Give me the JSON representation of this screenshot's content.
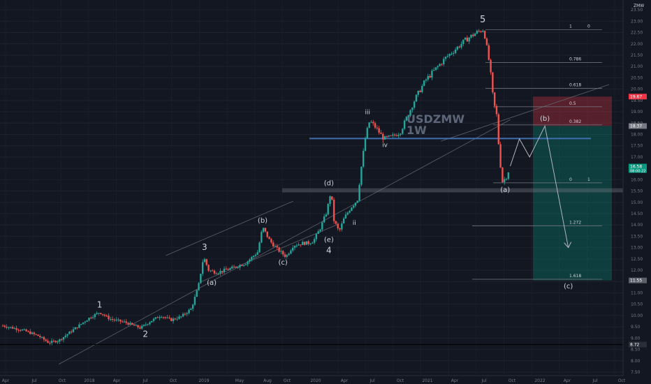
{
  "chart_data": {
    "type": "candlestick",
    "symbol_watermark": "USDZMW",
    "timeframe_watermark": "1W",
    "currency_label": "ZMW",
    "y_ticks": [
      "23.50",
      "23.00",
      "22.50",
      "22.00",
      "21.50",
      "21.00",
      "20.50",
      "20.00",
      "19.50",
      "19.00",
      "18.50",
      "18.00",
      "17.50",
      "17.00",
      "16.50",
      "16.00",
      "15.50",
      "15.00",
      "14.50",
      "14.00",
      "13.50",
      "13.00",
      "12.50",
      "12.00",
      "11.50",
      "11.00",
      "10.50",
      "10.00",
      "9.50",
      "9.00",
      "8.50",
      "8.00",
      "7.50"
    ],
    "ylim": [
      7.5,
      23.75
    ],
    "x_ticks": [
      "Apr",
      "Jul",
      "Oct",
      "2018",
      "Apr",
      "Jul",
      "Oct",
      "2019",
      "May",
      "Aug",
      "Oct",
      "2020",
      "Apr",
      "Jul",
      "Oct",
      "2021",
      "Apr",
      "Jul",
      "Oct",
      "2022",
      "Apr",
      "Jul",
      "Oct"
    ],
    "price_path": [
      [
        2017.0,
        9.55
      ],
      [
        2017.2,
        9.35
      ],
      [
        2017.35,
        9.1
      ],
      [
        2017.45,
        8.8
      ],
      [
        2017.55,
        8.9
      ],
      [
        2017.7,
        9.4
      ],
      [
        2017.85,
        9.9
      ],
      [
        2017.95,
        10.15
      ],
      [
        2018.05,
        9.85
      ],
      [
        2018.2,
        9.7
      ],
      [
        2018.35,
        9.45
      ],
      [
        2018.45,
        9.75
      ],
      [
        2018.55,
        10.0
      ],
      [
        2018.65,
        9.8
      ],
      [
        2018.75,
        9.95
      ],
      [
        2018.85,
        10.3
      ],
      [
        2018.92,
        11.3
      ],
      [
        2018.97,
        12.6
      ],
      [
        2019.02,
        12.0
      ],
      [
        2019.1,
        11.9
      ],
      [
        2019.25,
        12.1
      ],
      [
        2019.38,
        12.3
      ],
      [
        2019.5,
        12.8
      ],
      [
        2019.55,
        13.9
      ],
      [
        2019.62,
        13.3
      ],
      [
        2019.7,
        12.9
      ],
      [
        2019.78,
        12.6
      ],
      [
        2019.85,
        13.1
      ],
      [
        2019.95,
        13.2
      ],
      [
        2020.0,
        13.2
      ],
      [
        2020.05,
        13.3
      ],
      [
        2020.12,
        13.9
      ],
      [
        2020.18,
        14.6
      ],
      [
        2020.22,
        15.5
      ],
      [
        2020.25,
        14.2
      ],
      [
        2020.3,
        13.7
      ],
      [
        2020.35,
        14.3
      ],
      [
        2020.42,
        14.8
      ],
      [
        2020.48,
        15.1
      ],
      [
        2020.52,
        16.6
      ],
      [
        2020.56,
        17.9
      ],
      [
        2020.6,
        18.6
      ],
      [
        2020.66,
        18.3
      ],
      [
        2020.74,
        17.8
      ],
      [
        2020.82,
        17.9
      ],
      [
        2020.9,
        18.1
      ],
      [
        2020.97,
        18.8
      ],
      [
        2021.05,
        19.6
      ],
      [
        2021.15,
        20.4
      ],
      [
        2021.25,
        20.9
      ],
      [
        2021.35,
        21.4
      ],
      [
        2021.45,
        21.8
      ],
      [
        2021.55,
        22.2
      ],
      [
        2021.65,
        22.5
      ],
      [
        2021.72,
        22.65
      ],
      [
        2021.78,
        21.0
      ],
      [
        2021.82,
        19.2
      ],
      [
        2021.84,
        19.25
      ],
      [
        2021.87,
        17.3
      ],
      [
        2021.9,
        15.9
      ],
      [
        2021.94,
        16.1
      ],
      [
        2021.98,
        16.6
      ]
    ],
    "support_level": 8.72,
    "resistance_level_blue": 17.82,
    "zone_gray": [
      15.43,
      15.56
    ],
    "fib_levels": [
      {
        "label": "1",
        "price": 22.63,
        "right": "0"
      },
      {
        "label": "0.786",
        "price": 21.18,
        "right": ""
      },
      {
        "label": "0.618",
        "price": 20.03,
        "right": ""
      },
      {
        "label": "0.5",
        "price": 19.22,
        "right": ""
      },
      {
        "label": "0.382",
        "price": 18.42,
        "right": ""
      },
      {
        "label": "0",
        "price": 15.86,
        "right": "1"
      },
      {
        "label": "1.272",
        "price": 13.96,
        "right": ""
      },
      {
        "label": "1.618",
        "price": 11.6,
        "right": ""
      }
    ],
    "short_position": {
      "entry": 18.37,
      "stop": 19.67,
      "target": 11.55
    },
    "projection_path": [
      [
        2021.98,
        16.6
      ],
      [
        2022.07,
        17.8
      ],
      [
        2022.17,
        17.0
      ],
      [
        2022.32,
        18.37
      ],
      [
        2022.55,
        13.0
      ]
    ],
    "price_labels": [
      {
        "text": "19.67",
        "price": 19.67,
        "color": "#f23645"
      },
      {
        "text": "18.37",
        "price": 18.37,
        "color": "#787b86"
      },
      {
        "text": "16.58",
        "sub": "08:00:22",
        "price": 16.58,
        "color": "#089981"
      },
      {
        "text": "11.55",
        "price": 11.55,
        "color": "#5d606b"
      },
      {
        "text": "8.72",
        "price": 8.72,
        "color": "#2a2e39"
      }
    ],
    "wave_labels": [
      {
        "text": "1",
        "t": 2017.95,
        "price": 10.35,
        "size": 12
      },
      {
        "text": "2",
        "t": 2018.4,
        "price": 9.05,
        "size": 12
      },
      {
        "text": "3",
        "t": 2018.98,
        "price": 12.9,
        "size": 12
      },
      {
        "text": "(a)",
        "t": 2019.05,
        "price": 11.35,
        "size": 10
      },
      {
        "text": "(b)",
        "t": 2019.55,
        "price": 14.1,
        "size": 10
      },
      {
        "text": "(c)",
        "t": 2019.75,
        "price": 12.25,
        "size": 10
      },
      {
        "text": "(d)",
        "t": 2020.2,
        "price": 15.75,
        "size": 10
      },
      {
        "text": "(e)",
        "t": 2020.2,
        "price": 13.25,
        "size": 10
      },
      {
        "text": "4",
        "t": 2020.2,
        "price": 12.75,
        "size": 12
      },
      {
        "text": "ii",
        "t": 2020.45,
        "price": 14.0,
        "size": 9
      },
      {
        "text": "iii",
        "t": 2020.58,
        "price": 18.9,
        "size": 9
      },
      {
        "text": "iv",
        "t": 2020.75,
        "price": 17.45,
        "size": 9
      },
      {
        "text": "5",
        "t": 2021.71,
        "price": 22.95,
        "size": 13
      },
      {
        "text": "(a)",
        "t": 2021.93,
        "price": 15.45,
        "size": 10
      },
      {
        "text": "(b)",
        "t": 2022.32,
        "price": 18.6,
        "size": 10
      },
      {
        "text": "(c)",
        "t": 2022.55,
        "price": 11.2,
        "size": 10
      }
    ]
  }
}
